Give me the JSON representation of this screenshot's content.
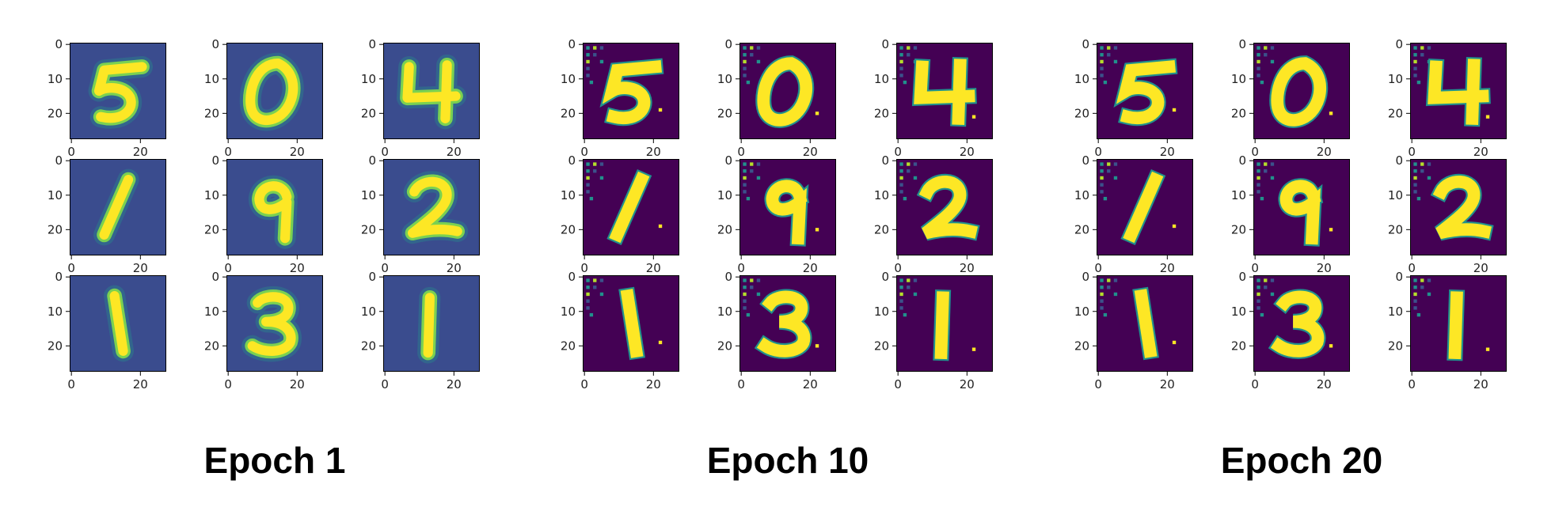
{
  "chart_data": {
    "type": "heatmap",
    "colormap": "viridis",
    "image_size": [
      28,
      28
    ],
    "x_ticks": [
      "0",
      "20"
    ],
    "y_ticks": [
      "0",
      "10",
      "20"
    ],
    "grid": false,
    "groups": [
      {
        "label": "Epoch 1",
        "style": "blurry",
        "digits": [
          "5",
          "0",
          "4",
          "1",
          "9",
          "2",
          "1",
          "3",
          "1"
        ]
      },
      {
        "label": "Epoch 10",
        "style": "sharp",
        "digits": [
          "5",
          "0",
          "4",
          "1",
          "9",
          "2",
          "1",
          "3",
          "1"
        ]
      },
      {
        "label": "Epoch 20",
        "style": "sharp",
        "digits": [
          "5",
          "0",
          "4",
          "1",
          "9",
          "2",
          "1",
          "3",
          "1"
        ]
      }
    ]
  },
  "colors": {
    "background_blurry": "#3a4c8e",
    "background_sharp": "#440154",
    "digit": "#fde725",
    "edge": "#21918c",
    "artifact": "#3b528b"
  }
}
